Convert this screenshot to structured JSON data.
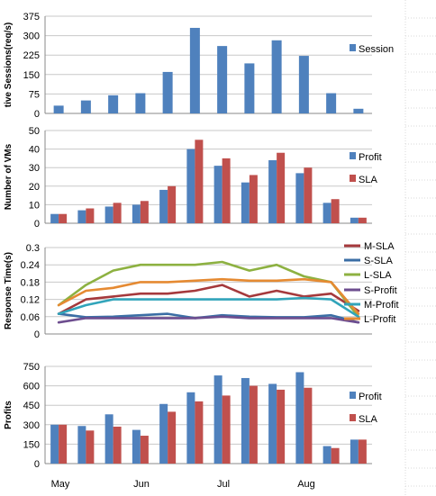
{
  "figure": {
    "months": [
      "May",
      "Jun",
      "Jul",
      "Aug"
    ]
  },
  "chart_data": [
    {
      "type": "bar",
      "ylabel": "tive Sessions(req/s)",
      "ylim": [
        0,
        375
      ],
      "yticks": [
        0,
        75,
        150,
        225,
        300,
        375
      ],
      "grid": true,
      "legend": "right",
      "series": [
        {
          "name": "Session",
          "color": "#4f81bd",
          "values": [
            30,
            50,
            70,
            78,
            160,
            330,
            260,
            193,
            282,
            222,
            78,
            18
          ]
        }
      ]
    },
    {
      "type": "bar",
      "ylabel": "Number of VMs",
      "ylim": [
        0,
        50
      ],
      "yticks": [
        0,
        10,
        20,
        30,
        40,
        50
      ],
      "grid": true,
      "legend": "right",
      "series": [
        {
          "name": "Profit",
          "color": "#4f81bd",
          "values": [
            5,
            7,
            9,
            10,
            18,
            40,
            31,
            22,
            34,
            27,
            11,
            3
          ]
        },
        {
          "name": "SLA",
          "color": "#c0504d",
          "values": [
            5,
            8,
            11,
            12,
            20,
            45,
            35,
            26,
            38,
            30,
            13,
            3
          ]
        }
      ]
    },
    {
      "type": "line",
      "ylabel": "Response Time(s)",
      "ylim": [
        0,
        0.3
      ],
      "yticks": [
        0,
        0.06,
        0.12,
        0.18,
        0.24,
        0.3
      ],
      "yticklabels": [
        "0",
        "0.06",
        "0.12",
        "0.18",
        "0.24",
        "0.3"
      ],
      "grid": true,
      "legend": "right",
      "series": [
        {
          "name": "M-SLA",
          "color": "#a5393c",
          "values": [
            0.07,
            0.12,
            0.13,
            0.14,
            0.14,
            0.15,
            0.17,
            0.13,
            0.15,
            0.13,
            0.14,
            0.08
          ]
        },
        {
          "name": "S-SLA",
          "color": "#3b6ea5",
          "values": [
            0.07,
            0.058,
            0.06,
            0.065,
            0.07,
            0.055,
            0.065,
            0.06,
            0.058,
            0.058,
            0.065,
            0.04
          ]
        },
        {
          "name": "L-SLA",
          "color": "#8db141",
          "values": [
            0.1,
            0.17,
            0.22,
            0.24,
            0.24,
            0.24,
            0.25,
            0.22,
            0.24,
            0.2,
            0.18,
            0.06
          ]
        },
        {
          "name": "S-Profit",
          "color": "#6d4d8f",
          "values": [
            0.04,
            0.055,
            0.055,
            0.055,
            0.055,
            0.055,
            0.06,
            0.055,
            0.055,
            0.055,
            0.055,
            0.04
          ]
        },
        {
          "name": "M-Profit",
          "color": "#31a4ba",
          "values": [
            0.07,
            0.1,
            0.12,
            0.12,
            0.12,
            0.12,
            0.12,
            0.12,
            0.12,
            0.125,
            0.12,
            0.06
          ]
        },
        {
          "name": "L-Profit",
          "color": "#e58a32",
          "values": [
            0.1,
            0.15,
            0.16,
            0.18,
            0.18,
            0.185,
            0.19,
            0.185,
            0.185,
            0.19,
            0.18,
            0.07
          ]
        }
      ]
    },
    {
      "type": "bar",
      "ylabel": "Profits",
      "ylim": [
        0,
        750
      ],
      "yticks": [
        0,
        150,
        300,
        450,
        600,
        750
      ],
      "grid": true,
      "legend": "right",
      "series": [
        {
          "name": "Profit",
          "color": "#4f81bd",
          "values": [
            300,
            290,
            380,
            260,
            460,
            550,
            680,
            660,
            615,
            705,
            135,
            185
          ]
        },
        {
          "name": "SLA",
          "color": "#c0504d",
          "values": [
            300,
            255,
            285,
            215,
            400,
            480,
            525,
            600,
            570,
            585,
            120,
            185
          ]
        }
      ]
    }
  ]
}
